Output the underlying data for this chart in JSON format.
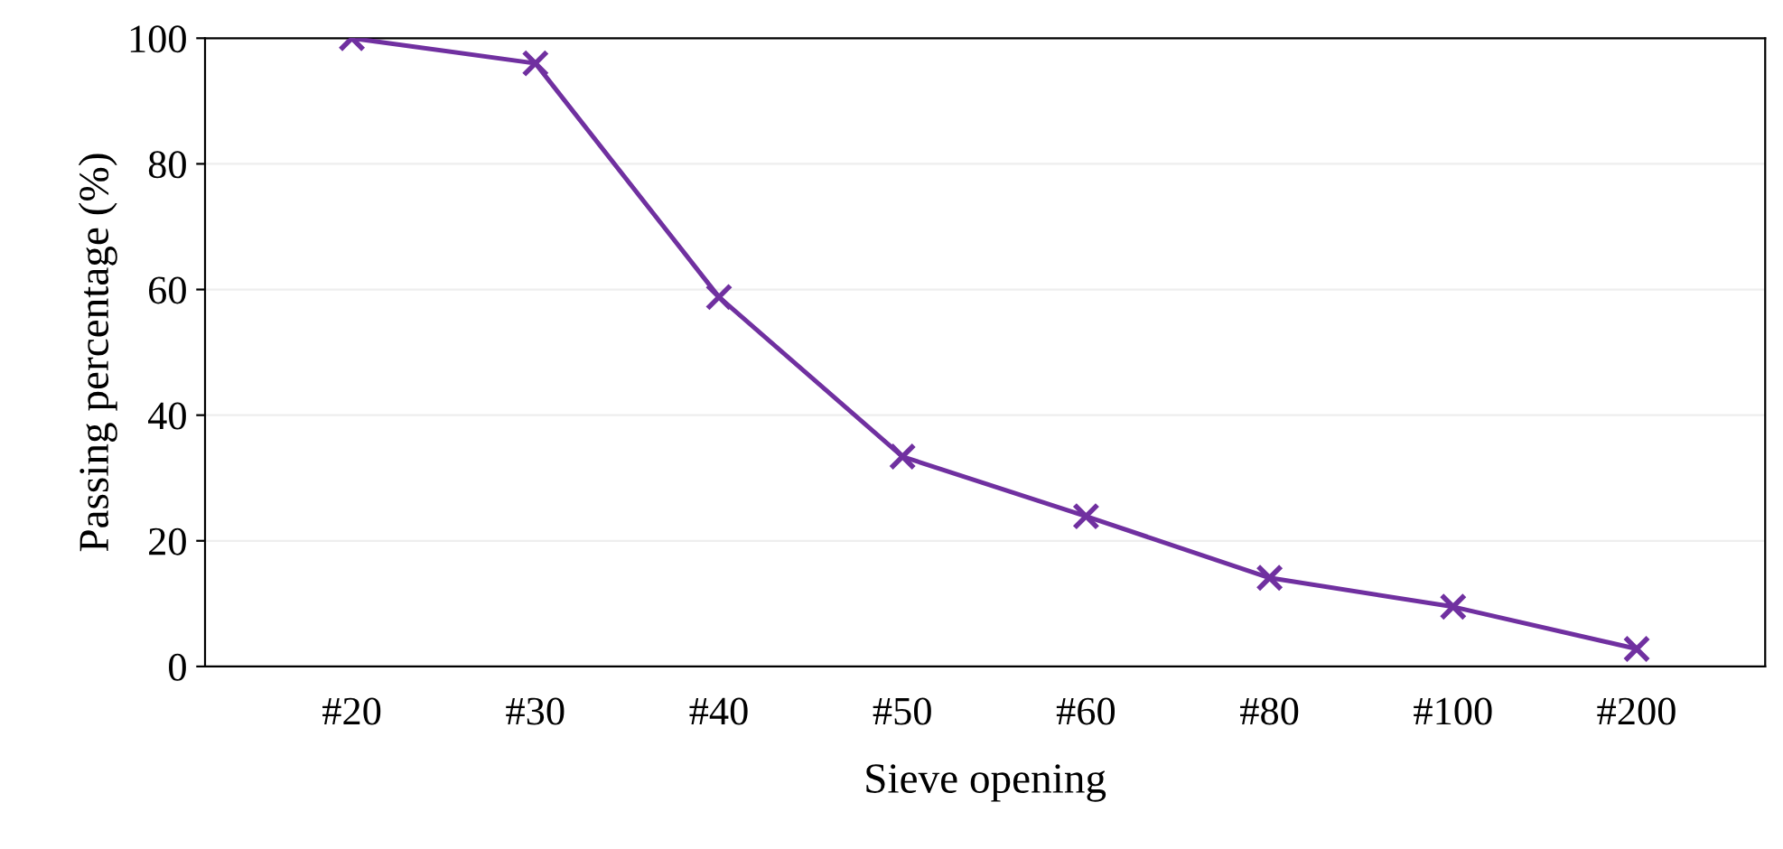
{
  "chart_data": {
    "type": "line",
    "xlabel": "Sieve opening",
    "ylabel": "Passing percentage (%)",
    "categories": [
      "#20",
      "#30",
      "#40",
      "#50",
      "#60",
      "#80",
      "#100",
      "#200"
    ],
    "series": [
      {
        "color": "#7030a0",
        "values": [
          100,
          96,
          58.8,
          33.4,
          23.9,
          14.1,
          9.5,
          2.8
        ]
      }
    ],
    "ylim": [
      0,
      100
    ],
    "yticks": [
      0,
      20,
      40,
      60,
      80,
      100
    ],
    "grid": "y",
    "marker": "cross",
    "line_style": "solid"
  }
}
